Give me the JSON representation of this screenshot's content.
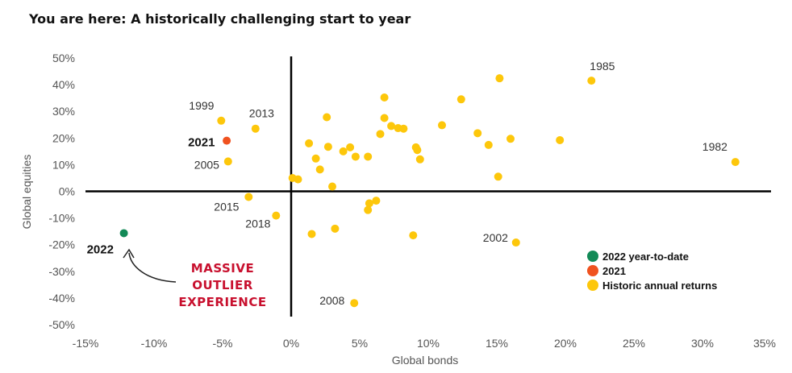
{
  "chart_data": {
    "type": "scatter",
    "title": "You are here: A historically challenging start to year",
    "xlabel": "Global bonds",
    "ylabel": "Global equities",
    "xlim": [
      -15,
      35
    ],
    "ylim": [
      -50,
      50
    ],
    "x_ticks": [
      "-15%",
      "-10%",
      "-5%",
      "0%",
      "5%",
      "10%",
      "15%",
      "20%",
      "25%",
      "30%",
      "35%"
    ],
    "y_ticks": [
      "50%",
      "40%",
      "30%",
      "20%",
      "10%",
      "0%",
      "-10%",
      "-20%",
      "-30%",
      "-40%",
      "-50%"
    ],
    "colors": {
      "ytd": "#138a57",
      "y2021": "#f0521f",
      "historic": "#fdc70b",
      "annotation": "#c8102e"
    },
    "series": [
      {
        "name": "Historic annual returns",
        "color": "#fdc70b",
        "points": [
          {
            "x": -5.1,
            "y": 26.5,
            "label": "1999"
          },
          {
            "x": -2.6,
            "y": 23.5,
            "label": "2013"
          },
          {
            "x": -4.6,
            "y": 11.2,
            "label": "2005"
          },
          {
            "x": -3.1,
            "y": -2.1,
            "label": "2015"
          },
          {
            "x": -1.1,
            "y": -9.1,
            "label": "2018"
          },
          {
            "x": 21.9,
            "y": 41.5,
            "label": "1985"
          },
          {
            "x": 32.4,
            "y": 11.0,
            "label": "1982"
          },
          {
            "x": 16.4,
            "y": -19.2,
            "label": "2002"
          },
          {
            "x": 4.6,
            "y": -41.9,
            "label": "2008"
          },
          {
            "x": 0.1,
            "y": 5.0
          },
          {
            "x": 0.5,
            "y": 4.5
          },
          {
            "x": 1.3,
            "y": 18.0
          },
          {
            "x": 1.8,
            "y": 12.3
          },
          {
            "x": 2.1,
            "y": 8.2
          },
          {
            "x": 2.6,
            "y": 27.8
          },
          {
            "x": 2.7,
            "y": 16.7
          },
          {
            "x": 3.0,
            "y": 1.8
          },
          {
            "x": 3.8,
            "y": 15.0
          },
          {
            "x": 4.3,
            "y": 16.5
          },
          {
            "x": 4.7,
            "y": 13.0
          },
          {
            "x": 5.6,
            "y": 13.0
          },
          {
            "x": 6.5,
            "y": 21.5
          },
          {
            "x": 6.8,
            "y": 27.5
          },
          {
            "x": 6.8,
            "y": 35.2
          },
          {
            "x": 7.3,
            "y": 24.5
          },
          {
            "x": 7.8,
            "y": 23.7
          },
          {
            "x": 8.2,
            "y": 23.5
          },
          {
            "x": 9.1,
            "y": 16.5
          },
          {
            "x": 9.2,
            "y": 15.5
          },
          {
            "x": 9.4,
            "y": 12.0
          },
          {
            "x": 11.0,
            "y": 24.8
          },
          {
            "x": 12.4,
            "y": 34.5
          },
          {
            "x": 13.6,
            "y": 21.8
          },
          {
            "x": 14.4,
            "y": 17.4
          },
          {
            "x": 15.2,
            "y": 42.4
          },
          {
            "x": 16.0,
            "y": 19.7
          },
          {
            "x": 19.6,
            "y": 19.2
          },
          {
            "x": 15.1,
            "y": 5.5
          },
          {
            "x": 5.7,
            "y": -4.5
          },
          {
            "x": 6.2,
            "y": -3.5
          },
          {
            "x": 5.6,
            "y": -7.0
          },
          {
            "x": 1.5,
            "y": -16.0
          },
          {
            "x": 3.2,
            "y": -14.0
          },
          {
            "x": 8.9,
            "y": -16.5
          }
        ]
      },
      {
        "name": "2021",
        "color": "#f0521f",
        "points": [
          {
            "x": -4.7,
            "y": 19.0,
            "label": "2021"
          }
        ]
      },
      {
        "name": "2022 year-to-date",
        "color": "#138a57",
        "points": [
          {
            "x": -12.2,
            "y": -15.7,
            "label": "2022"
          }
        ]
      }
    ],
    "legend": {
      "position": "bottom-right",
      "entries": [
        {
          "label": "2022 year-to-date",
          "color": "#138a57"
        },
        {
          "label": "2021",
          "color": "#f0521f"
        },
        {
          "label": "Historic annual returns",
          "color": "#fdc70b"
        }
      ]
    },
    "annotation": {
      "lines": [
        "MASSIVE",
        "OUTLIER",
        "EXPERIENCE"
      ],
      "points_to": "2022"
    }
  }
}
